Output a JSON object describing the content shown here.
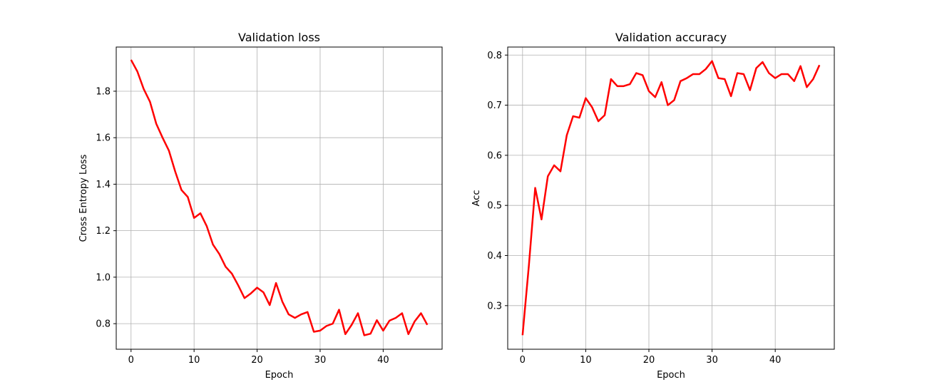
{
  "chart_data": [
    {
      "type": "line",
      "title": "Validation loss",
      "xlabel": "Epoch",
      "ylabel": "Cross Entropy Loss",
      "xlim": [
        -2.35,
        49.35
      ],
      "ylim": [
        0.69,
        1.99
      ],
      "xticks": [
        0,
        10,
        20,
        30,
        40
      ],
      "yticks": [
        0.8,
        1.0,
        1.2,
        1.4,
        1.6,
        1.8
      ],
      "ytick_labels": [
        "0.8",
        "1.0",
        "1.2",
        "1.4",
        "1.6",
        "1.8"
      ],
      "grid": true,
      "line_color": "#ff0000",
      "x": [
        0,
        1,
        2,
        3,
        4,
        5,
        6,
        7,
        8,
        9,
        10,
        11,
        12,
        13,
        14,
        15,
        16,
        17,
        18,
        19,
        20,
        21,
        22,
        23,
        24,
        25,
        26,
        27,
        28,
        29,
        30,
        31,
        32,
        33,
        34,
        35,
        36,
        37,
        38,
        39,
        40,
        41,
        42,
        43,
        44,
        45,
        46,
        47
      ],
      "series": [
        {
          "values": [
            1.935,
            1.885,
            1.81,
            1.755,
            1.66,
            1.6,
            1.545,
            1.455,
            1.375,
            1.345,
            1.255,
            1.275,
            1.22,
            1.14,
            1.1,
            1.045,
            1.015,
            0.965,
            0.91,
            0.93,
            0.955,
            0.935,
            0.88,
            0.975,
            0.895,
            0.84,
            0.825,
            0.84,
            0.85,
            0.765,
            0.77,
            0.79,
            0.8,
            0.86,
            0.755,
            0.795,
            0.845,
            0.75,
            0.757,
            0.815,
            0.77,
            0.813,
            0.825,
            0.845,
            0.755,
            0.81,
            0.845,
            0.795
          ]
        }
      ]
    },
    {
      "type": "line",
      "title": "Validation accuracy",
      "xlabel": "Epoch",
      "ylabel": "Acc",
      "xlim": [
        -2.35,
        49.35
      ],
      "ylim": [
        0.213,
        0.816
      ],
      "xticks": [
        0,
        10,
        20,
        30,
        40
      ],
      "yticks": [
        0.3,
        0.4,
        0.5,
        0.6,
        0.7,
        0.8
      ],
      "ytick_labels": [
        "0.3",
        "0.4",
        "0.5",
        "0.6",
        "0.7",
        "0.8"
      ],
      "grid": true,
      "line_color": "#ff0000",
      "x": [
        0,
        1,
        2,
        3,
        4,
        5,
        6,
        7,
        8,
        9,
        10,
        11,
        12,
        13,
        14,
        15,
        16,
        17,
        18,
        19,
        20,
        21,
        22,
        23,
        24,
        25,
        26,
        27,
        28,
        29,
        30,
        31,
        32,
        33,
        34,
        35,
        36,
        37,
        38,
        39,
        40,
        41,
        42,
        43,
        44,
        45,
        46,
        47
      ],
      "series": [
        {
          "values": [
            0.241,
            0.38,
            0.535,
            0.472,
            0.558,
            0.58,
            0.568,
            0.64,
            0.678,
            0.675,
            0.714,
            0.696,
            0.668,
            0.68,
            0.752,
            0.738,
            0.738,
            0.742,
            0.764,
            0.76,
            0.728,
            0.716,
            0.746,
            0.7,
            0.71,
            0.748,
            0.754,
            0.762,
            0.762,
            0.772,
            0.788,
            0.754,
            0.752,
            0.718,
            0.764,
            0.762,
            0.73,
            0.774,
            0.786,
            0.764,
            0.754,
            0.762,
            0.762,
            0.748,
            0.778,
            0.736,
            0.752,
            0.78
          ]
        }
      ]
    }
  ]
}
